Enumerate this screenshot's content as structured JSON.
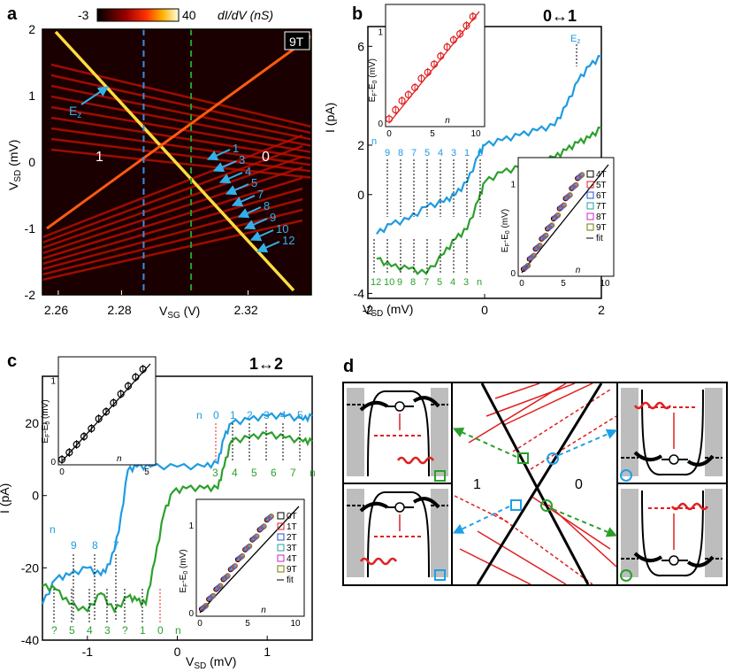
{
  "panels": {
    "a": "a",
    "b": "b",
    "c": "c",
    "d": "d"
  },
  "chart_data": [
    {
      "panel": "a",
      "type": "heatmap",
      "colorbar": {
        "min": "-3",
        "max": "40",
        "label": "dI/dV (nS)"
      },
      "field_label": "9T",
      "xlabel": "V",
      "xlabel_sub": "SG",
      "xlabel_unit": " (V)",
      "ylabel": "V",
      "ylabel_sub": "SD",
      "ylabel_unit": " (mV)",
      "xlim": [
        2.255,
        2.34
      ],
      "ylim": [
        -2,
        2
      ],
      "xticks": [
        "2.26",
        "2.28",
        "2.32"
      ],
      "xtick_vals": [
        2.26,
        2.28,
        2.32
      ],
      "yticks": [
        "2",
        "1",
        "0",
        "-1",
        "-2"
      ],
      "ytick_vals": [
        2,
        1,
        0,
        -1,
        -2
      ],
      "region_left": "1",
      "region_right": "0",
      "ez_label": "E",
      "ez_sub": "z",
      "arrow_labels": [
        "1",
        "3",
        "4",
        "5",
        "7",
        "8",
        "9",
        "10",
        "12"
      ],
      "cut_lines": [
        {
          "x": 2.287,
          "color": "#3a8ee6"
        },
        {
          "x": 2.302,
          "color": "#2aa02a"
        }
      ]
    },
    {
      "panel": "b",
      "type": "line",
      "title": "0↔1",
      "xlabel": "V",
      "xlabel_sub": "SD",
      "xlabel_unit": " (mV)",
      "ylabel": "I (pA)",
      "xlim": [
        -2,
        2
      ],
      "ylim": [
        -4.2,
        6.8
      ],
      "xticks": [
        "-2",
        "0",
        "2"
      ],
      "xtick_vals": [
        -2,
        0,
        2
      ],
      "yticks": [
        "6",
        "2",
        "0",
        "-4"
      ],
      "ytick_vals": [
        6,
        2,
        0,
        -4
      ],
      "ez_label": "E",
      "ez_sub": "z",
      "blue_n_labels": [
        "n",
        "9",
        "8",
        "7",
        "5",
        "4",
        "3",
        "1",
        "0"
      ],
      "green_n_labels": [
        "12",
        "10",
        "9",
        "8",
        "7",
        "5",
        "4",
        "3",
        "n"
      ],
      "series": [
        {
          "color": "#1e9be0",
          "x": [
            -1.85,
            -1.6,
            -1.3,
            -1,
            -0.7,
            -0.5,
            -0.3,
            -0.1,
            0,
            0.3,
            0.6,
            0.9,
            1.2,
            1.4,
            1.6,
            1.8,
            2
          ],
          "y": [
            -1.6,
            -1.2,
            -1.0,
            -0.5,
            -0.3,
            0,
            0.5,
            1.6,
            2.0,
            2.2,
            2.4,
            2.6,
            2.8,
            3.6,
            4.6,
            5.2,
            5.6
          ]
        },
        {
          "color": "#2ca02c",
          "x": [
            -1.85,
            -1.6,
            -1.3,
            -1,
            -0.7,
            -0.5,
            -0.3,
            -0.1,
            0,
            0.3,
            0.6,
            0.9,
            1.2,
            1.4,
            1.6,
            1.8,
            2
          ],
          "y": [
            -2.6,
            -2.9,
            -3.0,
            -3.2,
            -2.4,
            -1.8,
            -1.4,
            -0.2,
            0.5,
            0.9,
            1.1,
            1.3,
            1.5,
            1.8,
            2.1,
            2.3,
            2.7
          ]
        }
      ],
      "inset_top": {
        "ylabel": "E",
        "ylabel_sub": "F",
        "ylabel_2": "-E",
        "ylabel_sub2": "0",
        "ylabel_unit": " (mV)",
        "xlabel": "n",
        "xticks": [
          "0",
          "5",
          "10"
        ],
        "yticks": [
          "1",
          "0"
        ],
        "points": [
          [
            0,
            0.04
          ],
          [
            1,
            0.13
          ],
          [
            2,
            0.22
          ],
          [
            3,
            0.28
          ],
          [
            4,
            0.35
          ],
          [
            5,
            0.44
          ],
          [
            6,
            0.5
          ],
          [
            7,
            0.58
          ],
          [
            8,
            0.66
          ],
          [
            9,
            0.75
          ],
          [
            10,
            0.82
          ],
          [
            11,
            0.88
          ],
          [
            12,
            0.96
          ],
          [
            13,
            1.05
          ]
        ]
      },
      "inset_bottom": {
        "ylabel": "E",
        "ylabel_sub": "F",
        "ylabel_2": "-E",
        "ylabel_sub2": "0",
        "ylabel_unit": " (mV)",
        "xlabel": "n",
        "xticks": [
          "0",
          "5",
          "10"
        ],
        "yticks": [
          "1",
          "0"
        ],
        "legend": [
          "4T",
          "5T",
          "6T",
          "7T",
          "8T",
          "9T",
          "fit"
        ]
      }
    },
    {
      "panel": "c",
      "type": "line",
      "title": "1↔2",
      "xlabel": "V",
      "xlabel_sub": "SD",
      "xlabel_unit": " (mV)",
      "ylabel": "I (pA)",
      "xlim": [
        -1.5,
        1.5
      ],
      "ylim": [
        -40,
        33
      ],
      "xticks": [
        "-1",
        "0",
        "1"
      ],
      "xtick_vals": [
        -1,
        0,
        1
      ],
      "yticks": [
        "20",
        "0",
        "-20",
        "-40"
      ],
      "ytick_vals": [
        20,
        0,
        -20,
        -40
      ],
      "blue_n_labels_top": [
        "n",
        "0",
        "1",
        "2",
        "3",
        "4",
        "5"
      ],
      "green_n_labels_top": [
        "3",
        "4",
        "5",
        "6",
        "7",
        "n"
      ],
      "blue_n_labels_left": [
        "n",
        "9",
        "8",
        "7"
      ],
      "green_n_labels_bottom": [
        "?",
        "5",
        "4",
        "3",
        "?",
        "1",
        "0",
        "n"
      ],
      "series": [
        {
          "color": "#1e9be0",
          "x": [
            -1.5,
            -1.35,
            -1.2,
            -1.0,
            -0.85,
            -0.75,
            -0.65,
            -0.55,
            -0.45,
            -0.3,
            0,
            0.3,
            0.45,
            0.52,
            0.6,
            0.8,
            1.0,
            1.2,
            1.4,
            1.5
          ],
          "y": [
            -30,
            -23,
            -22,
            -20,
            -22,
            -19,
            -10,
            7,
            8,
            8,
            8,
            8,
            9,
            16,
            20,
            21,
            22,
            22,
            21,
            22
          ]
        },
        {
          "color": "#2ca02c",
          "x": [
            -1.5,
            -1.35,
            -1.2,
            -1.0,
            -0.85,
            -0.7,
            -0.55,
            -0.45,
            -0.35,
            -0.25,
            -0.15,
            -0.05,
            0.1,
            0.3,
            0.45,
            0.52,
            0.6,
            0.8,
            1.0,
            1.2,
            1.4,
            1.5
          ],
          "y": [
            -25,
            -26,
            -30,
            -32,
            -27,
            -32,
            -28,
            -29,
            -30,
            -18,
            -5,
            1,
            2,
            2,
            2,
            8,
            15,
            16,
            17,
            16,
            15,
            15
          ]
        }
      ],
      "inset_top": {
        "ylabel": "E",
        "ylabel_sub": "F",
        "ylabel_2": "-E",
        "ylabel_sub2": "0",
        "ylabel_unit": " (mV)",
        "xlabel": "n",
        "xticks": [
          "0",
          "5"
        ],
        "yticks": [
          "1",
          "0"
        ],
        "points": [
          [
            0,
            0.02
          ],
          [
            1,
            0.1
          ],
          [
            2,
            0.19
          ],
          [
            3,
            0.28
          ],
          [
            4,
            0.37
          ],
          [
            5,
            0.48
          ],
          [
            6,
            0.56
          ],
          [
            7,
            0.66
          ],
          [
            8,
            0.76
          ],
          [
            9,
            0.85
          ],
          [
            10,
            0.95
          ],
          [
            11,
            1.04
          ]
        ]
      },
      "inset_bottom": {
        "ylabel": "E",
        "ylabel_sub": "F",
        "ylabel_2": "-E",
        "ylabel_sub2": "0",
        "ylabel_unit": " (mV)",
        "xlabel": "n",
        "xticks": [
          "0",
          "5",
          "10"
        ],
        "yticks": [
          "1",
          "0"
        ],
        "legend": [
          "0T",
          "1T",
          "2T",
          "3T",
          "4T",
          "9T",
          "fit"
        ]
      }
    },
    {
      "panel": "d",
      "type": "diagram",
      "region_left": "1",
      "region_right": "0"
    }
  ]
}
